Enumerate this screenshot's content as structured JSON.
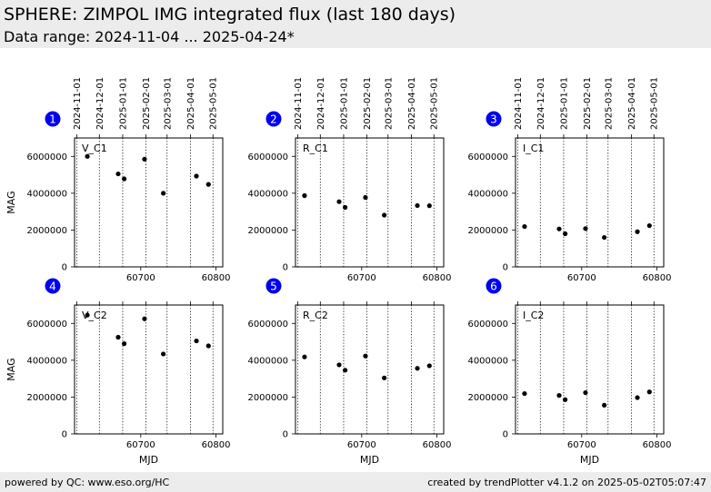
{
  "header": {
    "title": "SPHERE: ZIMPOL IMG integrated flux (last 180 days)",
    "subtitle": "Data range: 2024-11-04 ... 2025-04-24*"
  },
  "footer": {
    "left": "powered by QC: www.eso.org/HC",
    "right": "created by trendPlotter v4.1.2 on 2025-05-02T05:07:47"
  },
  "colors": {
    "badge": "#0000ee",
    "marker": "#000000",
    "header_bg": "#ececec"
  },
  "chart_data": [
    {
      "type": "scatter",
      "panel_number": "1",
      "label": "V_C1",
      "ylabel": "MAG",
      "xlabel": "",
      "x": [
        60629,
        60670,
        60678,
        60705,
        60730,
        60774,
        60790
      ],
      "y": [
        6000000,
        5050000,
        4780000,
        5850000,
        4000000,
        4930000,
        4480000
      ]
    },
    {
      "type": "scatter",
      "panel_number": "2",
      "label": "R_C1",
      "ylabel": "",
      "xlabel": "",
      "x": [
        60624,
        60670,
        60678,
        60705,
        60730,
        60774,
        60790
      ],
      "y": [
        3870000,
        3540000,
        3230000,
        3770000,
        2810000,
        3330000,
        3320000
      ]
    },
    {
      "type": "scatter",
      "panel_number": "3",
      "label": "I_C1",
      "ylabel": "",
      "xlabel": "",
      "x": [
        60624,
        60670,
        60678,
        60705,
        60730,
        60774,
        60790
      ],
      "y": [
        2190000,
        2060000,
        1800000,
        2080000,
        1600000,
        1910000,
        2240000
      ]
    },
    {
      "type": "scatter",
      "panel_number": "4",
      "label": "V_C2",
      "ylabel": "MAG",
      "xlabel": "MJD",
      "x": [
        60629,
        60670,
        60678,
        60705,
        60730,
        60774,
        60790
      ],
      "y": [
        6450000,
        5250000,
        4900000,
        6250000,
        4340000,
        5050000,
        4780000
      ]
    },
    {
      "type": "scatter",
      "panel_number": "5",
      "label": "R_C2",
      "ylabel": "",
      "xlabel": "MJD",
      "x": [
        60624,
        60670,
        60678,
        60705,
        60730,
        60774,
        60790
      ],
      "y": [
        4180000,
        3750000,
        3460000,
        4230000,
        3040000,
        3560000,
        3700000
      ]
    },
    {
      "type": "scatter",
      "panel_number": "6",
      "label": "I_C2",
      "ylabel": "",
      "xlabel": "MJD",
      "x": [
        60624,
        60670,
        60678,
        60705,
        60730,
        60774,
        60790
      ],
      "y": [
        2190000,
        2090000,
        1860000,
        2240000,
        1560000,
        1970000,
        2280000
      ]
    }
  ],
  "axes": {
    "xlim": [
      60612,
      60809
    ],
    "ylim": [
      0,
      7000000
    ],
    "yticks": [
      0,
      2000000,
      4000000,
      6000000
    ],
    "ytick_labels": [
      "0",
      "2000000",
      "4000000",
      "6000000"
    ],
    "xticks": [
      60700,
      60800
    ],
    "xtick_labels": [
      "60700",
      "60800"
    ],
    "month_mjd": [
      60615,
      60645,
      60676,
      60707,
      60735,
      60766,
      60796
    ],
    "month_labels": [
      "2024-11-01",
      "2024-12-01",
      "2025-01-01",
      "2025-02-01",
      "2025-03-01",
      "2025-04-01",
      "2025-05-01"
    ]
  }
}
